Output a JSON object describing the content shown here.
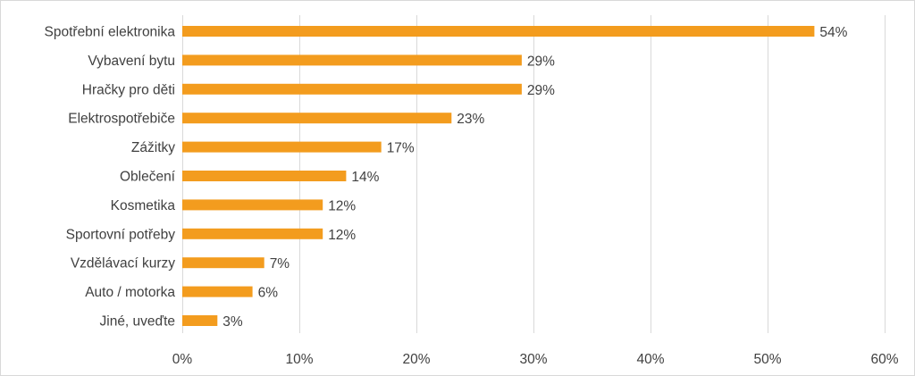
{
  "chart_data": {
    "type": "bar",
    "orientation": "horizontal",
    "categories": [
      "Spotřební elektronika",
      "Vybavení bytu",
      "Hračky pro děti",
      "Elektrospotřebiče",
      "Zážitky",
      "Oblečení",
      "Kosmetika",
      "Sportovní potřeby",
      "Vzdělávací kurzy",
      "Auto / motorka",
      "Jiné, uveďte"
    ],
    "values": [
      54,
      29,
      29,
      23,
      17,
      14,
      12,
      12,
      7,
      6,
      3
    ],
    "value_labels": [
      "54%",
      "29%",
      "29%",
      "23%",
      "17%",
      "14%",
      "12%",
      "12%",
      "7%",
      "6%",
      "3%"
    ],
    "title": "",
    "xlabel": "",
    "ylabel": "",
    "xlim": [
      0,
      60
    ],
    "x_ticks": [
      0,
      10,
      20,
      30,
      40,
      50,
      60
    ],
    "x_tick_labels": [
      "0%",
      "10%",
      "20%",
      "30%",
      "40%",
      "50%",
      "60%"
    ],
    "grid": "vertical",
    "legend": "none",
    "bar_color": "#F39C1E",
    "grid_color": "#D9D9D9",
    "text_color": "#404040"
  }
}
